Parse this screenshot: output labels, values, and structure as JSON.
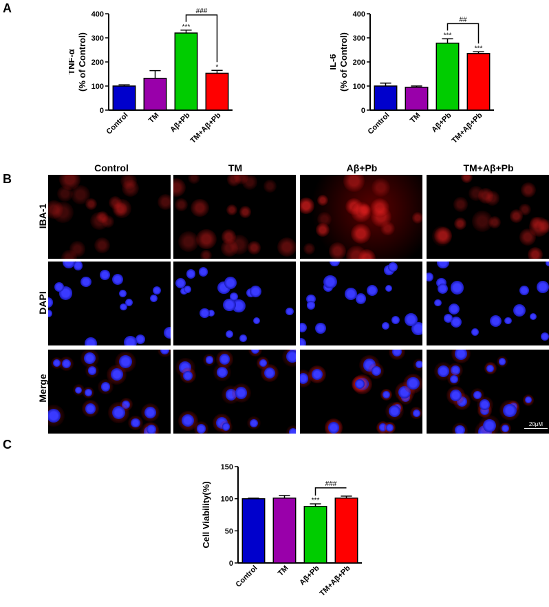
{
  "panels": {
    "A": "A",
    "B": "B",
    "C": "C"
  },
  "chart_data": [
    {
      "type": "bar",
      "panel": "A",
      "ylabel_line1": "TNF-α",
      "ylabel_line2": "(% of Control)",
      "categories": [
        "Control",
        "TM",
        "Aβ+Pb",
        "TM+Aβ+Pb"
      ],
      "values": [
        100,
        132,
        320,
        153
      ],
      "errors": [
        5,
        32,
        12,
        12
      ],
      "colors": [
        "#0000cc",
        "#9900aa",
        "#00cc00",
        "#ff0000"
      ],
      "annotations": [
        "",
        "",
        "***",
        "*"
      ],
      "comparison": {
        "from": 2,
        "to": 3,
        "label": "###"
      },
      "ylim": [
        0,
        400
      ],
      "yticks": [
        0,
        100,
        200,
        300,
        400
      ]
    },
    {
      "type": "bar",
      "panel": "A",
      "ylabel_line1": "IL-6",
      "ylabel_line2": "(% of Control)",
      "categories": [
        "Control",
        "TM",
        "Aβ+Pb",
        "TM+Aβ+Pb"
      ],
      "values": [
        100,
        95,
        278,
        235
      ],
      "errors": [
        12,
        5,
        18,
        7
      ],
      "colors": [
        "#0000cc",
        "#9900aa",
        "#00cc00",
        "#ff0000"
      ],
      "annotations": [
        "",
        "",
        "***",
        "***"
      ],
      "comparison": {
        "from": 2,
        "to": 3,
        "label": "##"
      },
      "ylim": [
        0,
        400
      ],
      "yticks": [
        0,
        100,
        200,
        300,
        400
      ]
    },
    {
      "type": "bar",
      "panel": "C",
      "ylabel": "Cell Viability(%)",
      "categories": [
        "Control",
        "TM",
        "Aβ+Pb",
        "TM+Aβ+Pb"
      ],
      "values": [
        100,
        101,
        88,
        101
      ],
      "errors": [
        1,
        4,
        4,
        3
      ],
      "colors": [
        "#0000cc",
        "#9900aa",
        "#00cc00",
        "#ff0000"
      ],
      "annotations": [
        "",
        "",
        "***",
        ""
      ],
      "comparison": {
        "from": 2,
        "to": 3,
        "label": "###"
      },
      "ylim": [
        0,
        150
      ],
      "yticks": [
        0,
        50,
        100,
        150
      ]
    }
  ],
  "microscopy": {
    "columns": [
      "Control",
      "TM",
      "Aβ+Pb",
      "TM+Aβ+Pb"
    ],
    "rows": [
      "IBA-1",
      "DAPI",
      "Merge"
    ],
    "scale_bar": "20μM"
  }
}
